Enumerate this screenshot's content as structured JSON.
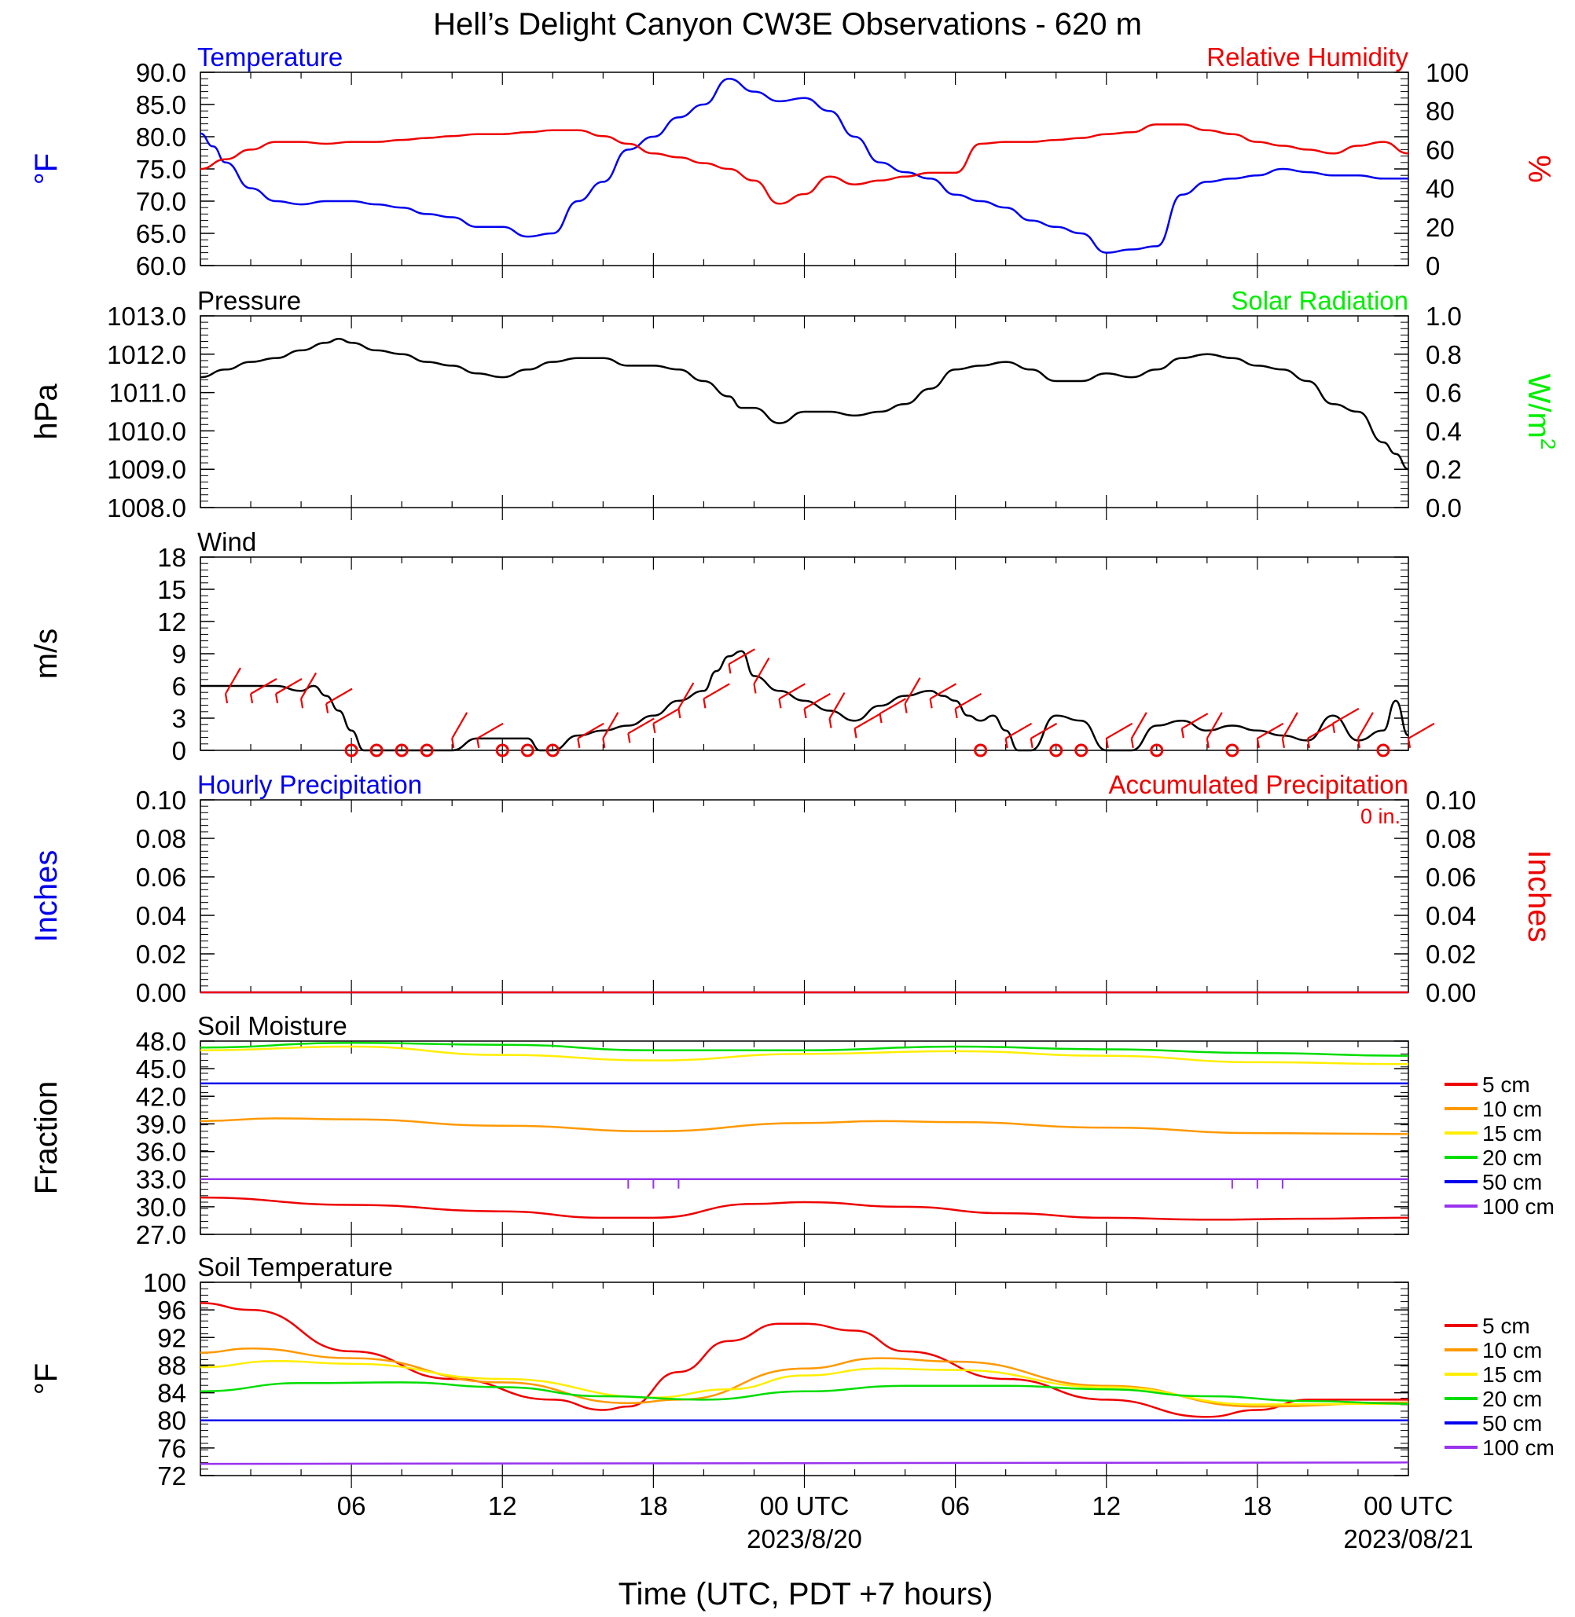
{
  "title": "Hell’s Delight Canyon CW3E Observations - 620 m",
  "xlabel": "Time (UTC, PDT +7 hours)",
  "x_axis": {
    "ticks": [
      "06",
      "12",
      "18",
      "00 UTC",
      "06",
      "12",
      "18",
      "00 UTC"
    ],
    "dates": [
      "2023/8/20",
      "2023/08/21"
    ]
  },
  "colors": {
    "blue": "#0000ee",
    "red": "#ee0000",
    "green": "#00ee00",
    "black": "#000000",
    "orange": "#ff9900",
    "yellow": "#ffee00",
    "green2": "#00dd00",
    "purple": "#9933ee"
  },
  "chart_data": [
    {
      "type": "line",
      "left_title": "Temperature",
      "right_title": "Relative Humidity",
      "ylabel_left": "°F",
      "ylabel_right": "%",
      "ylim_left": [
        60,
        90
      ],
      "ylim_right": [
        0,
        100
      ],
      "yticks_left": [
        "90.0",
        "85.0",
        "80.0",
        "75.0",
        "70.0",
        "65.0",
        "60.0"
      ],
      "yticks_right": [
        "100",
        "80",
        "60",
        "40",
        "20",
        "0"
      ],
      "x_hours_range": [
        0,
        48
      ],
      "series": [
        {
          "axis": "left",
          "color": "#0000ee",
          "x": [
            0,
            0.5,
            1,
            2,
            3,
            4,
            5,
            6,
            7,
            8,
            9,
            10,
            11,
            12,
            13,
            14,
            15,
            16,
            17,
            18,
            19,
            20,
            21,
            22,
            23,
            24,
            25,
            26,
            27,
            28,
            29,
            30,
            31,
            32,
            33,
            34,
            35,
            36,
            37,
            38,
            39,
            40,
            41,
            42,
            43,
            44,
            45,
            46,
            47,
            48
          ],
          "y": [
            80.5,
            78.5,
            76,
            72,
            70,
            69.5,
            70,
            70,
            69.5,
            69,
            68,
            67.5,
            66,
            66,
            64.5,
            65,
            70,
            73,
            78,
            80,
            83,
            85,
            89,
            87,
            85.5,
            86,
            84,
            80,
            76,
            74.5,
            73.5,
            71,
            70,
            69,
            67,
            66,
            65,
            62,
            62.5,
            63,
            71,
            73,
            73.5,
            74,
            75,
            74.5,
            74,
            74,
            73.5,
            73.5
          ]
        },
        {
          "axis": "right",
          "color": "#ee0000",
          "x": [
            0,
            1,
            2,
            3,
            4,
            5,
            6,
            7,
            8,
            9,
            10,
            11,
            12,
            13,
            14,
            15,
            16,
            17,
            18,
            19,
            20,
            21,
            22,
            23,
            24,
            25,
            26,
            27,
            28,
            29,
            30,
            31,
            32,
            33,
            34,
            35,
            36,
            37,
            38,
            39,
            40,
            41,
            42,
            43,
            44,
            45,
            46,
            47,
            48
          ],
          "y": [
            50,
            55,
            60,
            64,
            64,
            63,
            64,
            64,
            65,
            66,
            67,
            68,
            68,
            69,
            70,
            70,
            67,
            63,
            58,
            56,
            53,
            50,
            44,
            32,
            37,
            46,
            42,
            44,
            46,
            48,
            48,
            63,
            64,
            64,
            65,
            66,
            68,
            69,
            73,
            73,
            70,
            68,
            64,
            62,
            60,
            58,
            62,
            64,
            58
          ]
        }
      ]
    },
    {
      "type": "line",
      "left_title": "Pressure",
      "right_title": "Solar Radiation",
      "ylabel_left": "hPa",
      "ylabel_right": "W/m",
      "ylabel_right_sup": "2",
      "ylim_left": [
        1008,
        1013
      ],
      "ylim_right": [
        0,
        1
      ],
      "yticks_left": [
        "1013.0",
        "1012.0",
        "1011.0",
        "1010.0",
        "1009.0",
        "1008.0"
      ],
      "yticks_right": [
        "1.0",
        "0.8",
        "0.6",
        "0.4",
        "0.2",
        "0.0"
      ],
      "x_hours_range": [
        0,
        48
      ],
      "series": [
        {
          "axis": "left",
          "color": "#000000",
          "x": [
            0,
            1,
            2,
            3,
            4,
            5,
            5.5,
            6,
            7,
            8,
            9,
            10,
            11,
            12,
            13,
            14,
            15,
            16,
            17,
            18,
            19,
            20,
            21,
            21.5,
            22,
            23,
            24,
            25,
            26,
            27,
            28,
            29,
            30,
            31,
            32,
            33,
            34,
            35,
            36,
            37,
            38,
            39,
            40,
            41,
            42,
            43,
            44,
            45,
            46,
            47,
            47.5,
            48
          ],
          "y": [
            1011.4,
            1011.6,
            1011.8,
            1011.9,
            1012.1,
            1012.3,
            1012.4,
            1012.3,
            1012.1,
            1012.0,
            1011.8,
            1011.7,
            1011.5,
            1011.4,
            1011.6,
            1011.8,
            1011.9,
            1011.9,
            1011.7,
            1011.7,
            1011.6,
            1011.3,
            1010.9,
            1010.6,
            1010.6,
            1010.2,
            1010.5,
            1010.5,
            1010.4,
            1010.5,
            1010.7,
            1011.1,
            1011.6,
            1011.7,
            1011.8,
            1011.6,
            1011.3,
            1011.3,
            1011.5,
            1011.4,
            1011.6,
            1011.9,
            1012.0,
            1011.9,
            1011.7,
            1011.6,
            1011.3,
            1010.7,
            1010.5,
            1009.7,
            1009.4,
            1009.0
          ]
        }
      ]
    },
    {
      "type": "line",
      "left_title": "Wind",
      "ylabel_left": "m/s",
      "ylim_left": [
        0,
        19.5
      ],
      "yticks_left": [
        "18",
        "15",
        "12",
        "9",
        "6",
        "3",
        "0"
      ],
      "x_hours_range": [
        0,
        48
      ],
      "series": [
        {
          "axis": "left",
          "color": "#000000",
          "x": [
            0,
            1,
            2,
            3,
            4,
            4.5,
            5,
            5.5,
            6,
            6.5,
            7,
            8,
            9,
            10,
            11,
            12,
            13,
            13.5,
            14,
            15,
            16,
            17,
            18,
            19,
            20,
            20.5,
            21,
            21.5,
            22,
            23,
            24,
            25,
            26,
            27,
            28,
            29,
            29.5,
            30,
            30.5,
            31,
            31.5,
            32,
            32.5,
            33,
            34,
            35,
            36,
            37,
            38,
            39,
            40,
            41,
            42,
            43,
            44,
            45,
            46,
            47,
            47.5,
            48
          ],
          "y": [
            6.5,
            6.5,
            6.5,
            6.5,
            6,
            6.5,
            5.5,
            4,
            2,
            0,
            0,
            0,
            0,
            0,
            1.2,
            1.2,
            1.2,
            0,
            0,
            1.5,
            2,
            2.5,
            3.5,
            5,
            6,
            8,
            9.5,
            10,
            7.5,
            6,
            5,
            4,
            3,
            4.5,
            5.5,
            6,
            5.5,
            5,
            3.5,
            3,
            3.5,
            2,
            0,
            0,
            3.5,
            3,
            0,
            0,
            2.5,
            3,
            2,
            2.5,
            2,
            1.5,
            1,
            3.5,
            1,
            2,
            5,
            1.5
          ]
        },
        {
          "type": "barbs",
          "color": "#ee0000",
          "x": [
            1,
            2,
            3,
            4,
            5,
            6,
            7,
            8,
            9,
            10,
            11,
            12,
            13,
            14,
            15,
            16,
            17,
            18,
            19,
            20,
            21,
            22,
            23,
            24,
            25,
            26,
            27,
            28,
            29,
            30,
            31,
            32,
            33,
            34,
            35,
            36,
            37,
            38,
            39,
            40,
            41,
            42,
            43,
            44,
            45,
            46,
            47,
            48
          ],
          "calm_x": [
            6,
            7,
            8,
            9,
            12,
            13,
            14,
            31,
            34,
            35,
            38,
            41,
            47
          ]
        }
      ]
    },
    {
      "type": "line",
      "left_title": "Hourly Precipitation",
      "right_title": "Accumulated Precipitation",
      "annotation": "0 in.",
      "ylabel_left": "Inches",
      "ylabel_right": "Inches",
      "ylim_left": [
        0,
        0.1
      ],
      "ylim_right": [
        0,
        0.1
      ],
      "yticks_left": [
        "0.10",
        "0.08",
        "0.06",
        "0.04",
        "0.02",
        "0.00"
      ],
      "yticks_right": [
        "0.10",
        "0.08",
        "0.06",
        "0.04",
        "0.02",
        "0.00"
      ],
      "x_hours_range": [
        0,
        48
      ],
      "series": [
        {
          "axis": "left",
          "color": "#0000ee",
          "x": [
            0,
            48
          ],
          "y": [
            0,
            0
          ]
        },
        {
          "axis": "right",
          "color": "#ee0000",
          "x": [
            0,
            48
          ],
          "y": [
            0,
            0
          ]
        }
      ]
    },
    {
      "type": "line",
      "left_title": "Soil Moisture",
      "ylabel_left": "Fraction",
      "ylim_left": [
        27,
        48
      ],
      "yticks_left": [
        "48.0",
        "45.0",
        "42.0",
        "39.0",
        "36.0",
        "33.0",
        "30.0",
        "27.0"
      ],
      "x_hours_range": [
        0,
        48
      ],
      "legend": [
        "5 cm",
        "10 cm",
        "15 cm",
        "20 cm",
        "50 cm",
        "100 cm"
      ],
      "series": [
        {
          "name": "5 cm",
          "color": "#ee0000",
          "x": [
            0,
            6,
            12,
            16,
            18,
            22,
            24,
            28,
            32,
            36,
            40,
            44,
            48
          ],
          "y": [
            31,
            30.2,
            29.5,
            28.8,
            28.8,
            30.3,
            30.5,
            30,
            29.3,
            28.8,
            28.6,
            28.7,
            28.8
          ]
        },
        {
          "name": "10 cm",
          "color": "#ff9900",
          "x": [
            0,
            3,
            6,
            12,
            18,
            24,
            27,
            30,
            36,
            42,
            48
          ],
          "y": [
            39.3,
            39.6,
            39.5,
            38.8,
            38.2,
            39.1,
            39.3,
            39.2,
            38.6,
            38,
            37.9
          ]
        },
        {
          "name": "15 cm",
          "color": "#ffee00",
          "x": [
            0,
            6,
            12,
            18,
            24,
            30,
            36,
            42,
            48
          ],
          "y": [
            47,
            47.4,
            46.5,
            45.9,
            46.6,
            46.9,
            46.4,
            45.7,
            45.5
          ]
        },
        {
          "name": "20 cm",
          "color": "#00dd00",
          "x": [
            0,
            6,
            12,
            18,
            24,
            30,
            36,
            42,
            48
          ],
          "y": [
            47.3,
            47.8,
            47.6,
            47,
            47,
            47.4,
            47.1,
            46.7,
            46.4
          ]
        },
        {
          "name": "50 cm",
          "color": "#0000ee",
          "x": [
            0,
            48
          ],
          "y": [
            43.4,
            43.4
          ]
        },
        {
          "name": "100 cm",
          "color": "#9933ee",
          "x": [
            0,
            48
          ],
          "y": [
            33,
            33
          ],
          "dips_x": [
            17,
            18,
            19,
            41,
            42,
            43
          ]
        }
      ]
    },
    {
      "type": "line",
      "left_title": "Soil Temperature",
      "ylabel_left": "°F",
      "ylim_left": [
        72,
        100
      ],
      "yticks_left": [
        "100",
        "96",
        "92",
        "88",
        "84",
        "80",
        "76",
        "72"
      ],
      "x_hours_range": [
        0,
        48
      ],
      "legend": [
        "5 cm",
        "10 cm",
        "15 cm",
        "20 cm",
        "50 cm",
        "100 cm"
      ],
      "series": [
        {
          "name": "5 cm",
          "color": "#ee0000",
          "x": [
            0,
            2,
            6,
            10,
            14,
            16,
            17,
            19,
            21,
            23,
            24,
            26,
            28,
            32,
            36,
            40,
            42,
            44,
            48
          ],
          "y": [
            97,
            96,
            90,
            86,
            83,
            81.5,
            82,
            87,
            91.5,
            94,
            94,
            93,
            90,
            86,
            83,
            80.5,
            81.5,
            83,
            83
          ]
        },
        {
          "name": "10 cm",
          "color": "#ff9900",
          "x": [
            0,
            2,
            6,
            12,
            17,
            19,
            24,
            27,
            30,
            36,
            42,
            48
          ],
          "y": [
            89.8,
            90.4,
            89,
            85.5,
            82.5,
            83,
            87.5,
            89,
            88.5,
            85,
            82,
            82.6
          ]
        },
        {
          "name": "15 cm",
          "color": "#ffee00",
          "x": [
            0,
            3,
            6,
            12,
            18,
            21,
            24,
            27,
            30,
            36,
            42,
            48
          ],
          "y": [
            87.7,
            88.6,
            88.2,
            86,
            83.3,
            84.5,
            86.5,
            87.5,
            87.3,
            84.8,
            82.3,
            82.4
          ]
        },
        {
          "name": "20 cm",
          "color": "#00dd00",
          "x": [
            0,
            4,
            8,
            12,
            16,
            20,
            24,
            28,
            32,
            36,
            40,
            44,
            48
          ],
          "y": [
            84.2,
            85.4,
            85.5,
            84.8,
            83.5,
            83,
            84.2,
            85,
            85,
            84.5,
            83.5,
            82.8,
            82.4
          ]
        },
        {
          "name": "50 cm",
          "color": "#0000ee",
          "x": [
            0,
            48
          ],
          "y": [
            80,
            80
          ]
        },
        {
          "name": "100 cm",
          "color": "#9933ee",
          "x": [
            0,
            48
          ],
          "y": [
            73.7,
            73.9
          ]
        }
      ]
    }
  ]
}
